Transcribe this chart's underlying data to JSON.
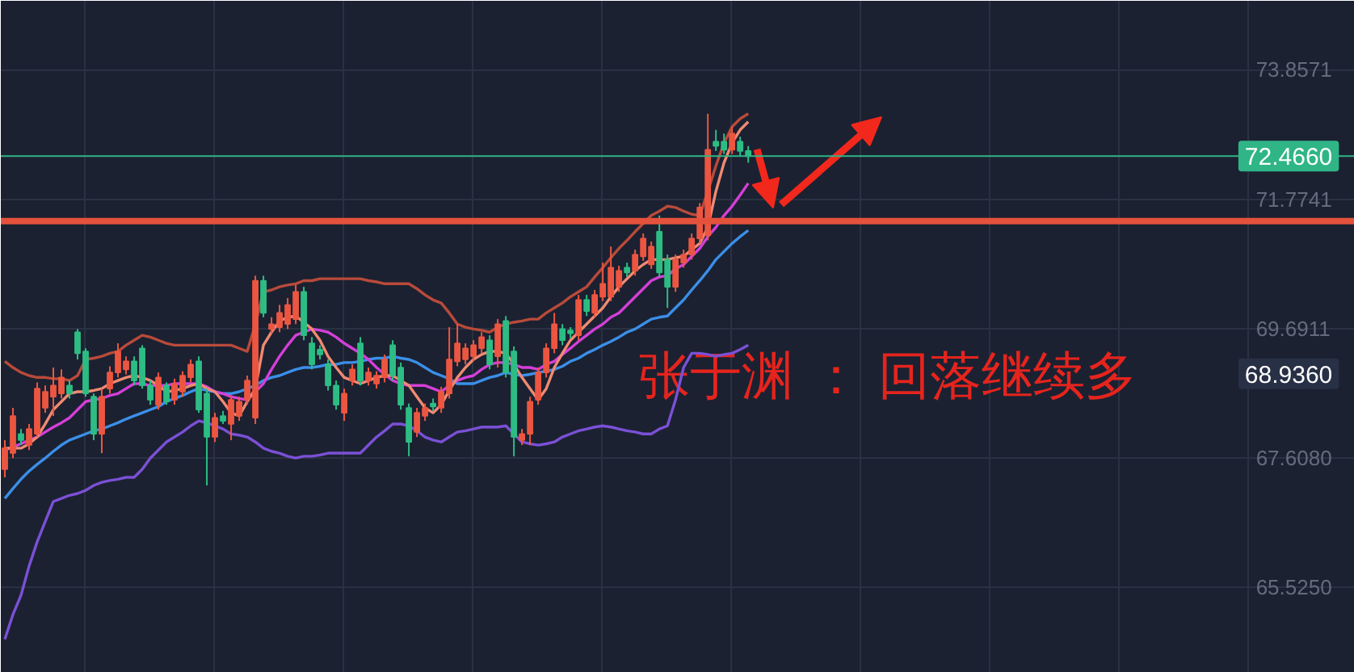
{
  "chart_data": {
    "type": "candlestick",
    "categories": [
      null,
      null,
      null,
      null,
      null,
      null,
      null,
      null,
      null,
      null,
      null,
      null,
      null,
      null,
      null,
      null,
      null,
      null,
      null,
      null,
      null,
      null,
      null,
      null,
      null,
      null,
      null,
      null,
      null,
      null,
      null,
      null,
      null,
      null,
      null,
      null,
      null,
      null,
      null,
      null,
      null,
      null,
      null,
      null,
      null,
      null,
      null,
      null,
      null,
      null,
      null,
      null,
      null,
      null,
      null,
      null,
      null,
      null,
      null,
      null,
      null,
      null,
      null,
      null,
      null,
      null,
      null,
      null,
      null,
      null,
      null,
      null,
      null,
      null,
      null,
      null,
      null,
      null,
      null,
      null,
      null,
      null,
      null,
      null,
      null,
      null,
      null,
      null,
      null,
      null,
      null,
      null,
      null
    ],
    "ohlc": [
      [
        67.42,
        67.89,
        67.29,
        67.76
      ],
      [
        67.68,
        68.41,
        67.6,
        68.28
      ],
      [
        67.99,
        68.07,
        67.81,
        67.89
      ],
      [
        67.81,
        68.15,
        67.73,
        68.07
      ],
      [
        67.99,
        68.82,
        67.94,
        68.72
      ],
      [
        68.41,
        68.77,
        68.33,
        68.67
      ],
      [
        68.59,
        69.06,
        68.28,
        68.77
      ],
      [
        68.64,
        69.03,
        68.56,
        68.9
      ],
      [
        68.77,
        68.85,
        68.56,
        68.64
      ],
      [
        69.63,
        69.68,
        69.19,
        69.29
      ],
      [
        69.32,
        69.37,
        68.59,
        68.64
      ],
      [
        68.59,
        68.64,
        67.89,
        67.99
      ],
      [
        67.99,
        68.72,
        67.68,
        68.59
      ],
      [
        68.72,
        69.08,
        68.64,
        68.98
      ],
      [
        68.98,
        69.45,
        68.9,
        69.32
      ],
      [
        69.03,
        69.24,
        68.95,
        69.16
      ],
      [
        69.16,
        69.24,
        68.77,
        68.85
      ],
      [
        69.37,
        69.42,
        68.72,
        68.77
      ],
      [
        68.77,
        68.85,
        68.46,
        68.54
      ],
      [
        68.46,
        68.98,
        68.38,
        68.9
      ],
      [
        68.77,
        68.82,
        68.46,
        68.51
      ],
      [
        68.54,
        68.88,
        68.46,
        68.8
      ],
      [
        68.67,
        69.0,
        68.59,
        68.93
      ],
      [
        68.9,
        69.19,
        68.82,
        69.11
      ],
      [
        69.16,
        69.24,
        68.33,
        68.38
      ],
      [
        68.64,
        68.72,
        67.16,
        67.94
      ],
      [
        67.94,
        68.33,
        67.86,
        68.25
      ],
      [
        68.28,
        68.36,
        68.15,
        68.2
      ],
      [
        68.15,
        68.61,
        67.89,
        68.54
      ],
      [
        68.28,
        68.59,
        68.2,
        68.51
      ],
      [
        68.54,
        68.93,
        68.46,
        68.85
      ],
      [
        68.25,
        70.54,
        68.15,
        70.46
      ],
      [
        70.46,
        70.54,
        69.87,
        69.94
      ],
      [
        69.68,
        69.87,
        69.61,
        69.76
      ],
      [
        69.71,
        70.07,
        69.63,
        69.94
      ],
      [
        69.76,
        70.18,
        69.68,
        70.07
      ],
      [
        69.84,
        70.39,
        69.76,
        70.28
      ],
      [
        70.28,
        70.36,
        69.5,
        69.58
      ],
      [
        69.45,
        69.55,
        69.03,
        69.11
      ],
      [
        69.35,
        69.42,
        69.19,
        69.27
      ],
      [
        69.11,
        69.19,
        68.69,
        68.77
      ],
      [
        68.77,
        68.85,
        68.38,
        68.46
      ],
      [
        68.33,
        68.72,
        68.2,
        68.64
      ],
      [
        68.85,
        69.11,
        68.77,
        69.03
      ],
      [
        69.45,
        69.55,
        68.77,
        68.85
      ],
      [
        68.85,
        69.06,
        68.77,
        68.98
      ],
      [
        68.8,
        69.0,
        68.72,
        68.93
      ],
      [
        68.9,
        69.27,
        68.82,
        69.19
      ],
      [
        69.42,
        69.5,
        68.85,
        68.93
      ],
      [
        69.06,
        69.14,
        68.38,
        68.46
      ],
      [
        68.41,
        68.48,
        67.63,
        67.86
      ],
      [
        68.02,
        68.41,
        67.94,
        68.33
      ],
      [
        68.28,
        68.48,
        68.2,
        68.41
      ],
      [
        68.48,
        68.56,
        68.36,
        68.43
      ],
      [
        68.41,
        68.75,
        68.33,
        68.67
      ],
      [
        68.64,
        69.71,
        68.56,
        69.19
      ],
      [
        69.16,
        69.76,
        69.08,
        69.45
      ],
      [
        69.19,
        69.45,
        69.11,
        69.37
      ],
      [
        69.24,
        69.5,
        69.16,
        69.42
      ],
      [
        69.37,
        69.63,
        69.29,
        69.55
      ],
      [
        69.5,
        69.58,
        69.03,
        69.11
      ],
      [
        69.24,
        69.84,
        69.06,
        69.76
      ],
      [
        69.81,
        69.89,
        68.9,
        68.98
      ],
      [
        69.32,
        69.4,
        67.63,
        67.94
      ],
      [
        67.89,
        68.07,
        67.81,
        67.99
      ],
      [
        67.99,
        68.59,
        67.81,
        68.51
      ],
      [
        68.54,
        69.06,
        68.46,
        68.98
      ],
      [
        68.98,
        69.45,
        68.9,
        69.37
      ],
      [
        69.37,
        69.94,
        69.29,
        69.76
      ],
      [
        69.68,
        69.76,
        69.42,
        69.5
      ],
      [
        69.66,
        69.71,
        69.53,
        69.61
      ],
      [
        69.58,
        70.23,
        69.5,
        70.15
      ],
      [
        70.15,
        70.23,
        69.89,
        69.97
      ],
      [
        69.94,
        70.31,
        69.87,
        70.23
      ],
      [
        70.2,
        70.75,
        70.13,
        70.41
      ],
      [
        70.2,
        71.01,
        70.13,
        70.67
      ],
      [
        70.36,
        70.7,
        70.28,
        70.62
      ],
      [
        70.67,
        70.75,
        70.52,
        70.59
      ],
      [
        70.62,
        70.96,
        70.54,
        70.88
      ],
      [
        70.85,
        71.22,
        70.78,
        71.14
      ],
      [
        70.72,
        71.09,
        70.65,
        71.01
      ],
      [
        71.25,
        71.51,
        70.52,
        70.59
      ],
      [
        70.8,
        70.88,
        70.02,
        70.36
      ],
      [
        70.36,
        70.88,
        70.28,
        70.8
      ],
      [
        70.75,
        70.96,
        70.67,
        70.88
      ],
      [
        70.88,
        71.22,
        70.8,
        71.14
      ],
      [
        71.14,
        71.71,
        71.06,
        71.64
      ],
      [
        71.19,
        73.15,
        71.11,
        72.57
      ],
      [
        72.7,
        72.89,
        72.55,
        72.63
      ],
      [
        72.7,
        72.83,
        72.5,
        72.57
      ],
      [
        72.57,
        72.94,
        72.5,
        72.83
      ],
      [
        72.7,
        72.78,
        72.47,
        72.55
      ],
      [
        72.55,
        72.63,
        72.36,
        72.466
      ]
    ],
    "colors": [
      "#ec5641",
      "#ec5641",
      "#2dbd84",
      "#ec5641",
      "#ec5641",
      "#ec5641",
      "#ec5641",
      "#ec5641",
      "#2dbd84",
      "#2dbd84",
      "#2dbd84",
      "#2dbd84",
      "#ec5641",
      "#ec5641",
      "#ec5641",
      "#ec5641",
      "#2dbd84",
      "#2dbd84",
      "#2dbd84",
      "#ec5641",
      "#2dbd84",
      "#ec5641",
      "#ec5641",
      "#ec5641",
      "#2dbd84",
      "#2dbd84",
      "#ec5641",
      "#2dbd84",
      "#ec5641",
      "#ec5641",
      "#ec5641",
      "#ec5641",
      "#2dbd84",
      "#ec5641",
      "#ec5641",
      "#ec5641",
      "#ec5641",
      "#2dbd84",
      "#2dbd84",
      "#2dbd84",
      "#2dbd84",
      "#2dbd84",
      "#ec5641",
      "#ec5641",
      "#2dbd84",
      "#ec5641",
      "#ec5641",
      "#ec5641",
      "#2dbd84",
      "#2dbd84",
      "#2dbd84",
      "#ec5641",
      "#ec5641",
      "#2dbd84",
      "#ec5641",
      "#ec5641",
      "#ec5641",
      "#ec5641",
      "#ec5641",
      "#ec5641",
      "#2dbd84",
      "#ec5641",
      "#2dbd84",
      "#2dbd84",
      "#ec5641",
      "#ec5641",
      "#ec5641",
      "#ec5641",
      "#ec5641",
      "#2dbd84",
      "#2dbd84",
      "#ec5641",
      "#2dbd84",
      "#ec5641",
      "#ec5641",
      "#ec5641",
      "#ec5641",
      "#2dbd84",
      "#ec5641",
      "#ec5641",
      "#ec5641",
      "#2dbd84",
      "#2dbd84",
      "#ec5641",
      "#ec5641",
      "#ec5641",
      "#ec5641",
      "#ec5641",
      "#2dbd84",
      "#2dbd84",
      "#ec5641",
      "#2dbd84",
      "#2dbd84"
    ],
    "series": [
      {
        "type": "line",
        "color": "#b94a3a",
        "values": [
          69.16,
          69.06,
          68.98,
          68.93,
          68.9,
          68.9,
          68.88,
          68.88,
          68.85,
          68.93,
          69.19,
          69.21,
          69.24,
          69.29,
          69.32,
          69.42,
          69.5,
          69.58,
          69.55,
          69.5,
          69.45,
          69.42,
          69.42,
          69.42,
          69.42,
          69.42,
          69.42,
          69.42,
          69.42,
          69.37,
          69.32,
          69.76,
          70.28,
          70.31,
          70.36,
          70.39,
          70.41,
          70.46,
          70.46,
          70.49,
          70.49,
          70.49,
          70.49,
          70.49,
          70.49,
          70.46,
          70.44,
          70.41,
          70.41,
          70.41,
          70.41,
          70.33,
          70.23,
          70.15,
          70.1,
          69.94,
          69.76,
          69.71,
          69.68,
          69.66,
          69.63,
          69.71,
          69.76,
          69.79,
          69.81,
          69.84,
          69.84,
          69.94,
          70.02,
          70.1,
          70.2,
          70.28,
          70.36,
          70.52,
          70.67,
          70.83,
          70.98,
          71.11,
          71.25,
          71.38,
          71.51,
          71.58,
          71.66,
          71.64,
          71.58,
          71.53,
          71.51,
          71.9,
          72.31,
          72.68,
          72.94,
          73.07,
          73.15
        ]
      },
      {
        "type": "line",
        "color": "#7b50d6",
        "values": [
          64.68,
          65.08,
          65.39,
          65.86,
          66.25,
          66.58,
          66.9,
          66.95,
          67.0,
          67.03,
          67.08,
          67.16,
          67.21,
          67.24,
          67.26,
          67.29,
          67.29,
          67.42,
          67.6,
          67.73,
          67.86,
          67.94,
          68.02,
          68.12,
          68.2,
          68.17,
          68.12,
          68.07,
          67.99,
          67.97,
          67.94,
          67.86,
          67.76,
          67.71,
          67.68,
          67.63,
          67.6,
          67.63,
          67.63,
          67.65,
          67.68,
          67.68,
          67.68,
          67.68,
          67.68,
          67.81,
          67.94,
          68.04,
          68.15,
          68.15,
          68.12,
          68.04,
          67.94,
          67.89,
          67.86,
          67.94,
          68.02,
          68.04,
          68.07,
          68.1,
          68.1,
          68.1,
          68.12,
          67.99,
          67.86,
          67.83,
          67.81,
          67.83,
          67.86,
          67.94,
          67.99,
          68.04,
          68.07,
          68.1,
          68.12,
          68.1,
          68.07,
          68.04,
          68.02,
          67.99,
          67.99,
          68.07,
          68.12,
          68.54,
          69.06,
          69.29,
          69.29,
          69.27,
          69.24,
          69.27,
          69.29,
          69.35,
          69.42
        ]
      },
      {
        "type": "line",
        "color": "#3b8fe8",
        "values": [
          66.95,
          67.11,
          67.26,
          67.39,
          67.5,
          67.6,
          67.71,
          67.81,
          67.89,
          67.94,
          67.99,
          68.04,
          68.07,
          68.12,
          68.17,
          68.23,
          68.28,
          68.33,
          68.38,
          68.43,
          68.51,
          68.56,
          68.61,
          68.67,
          68.72,
          68.69,
          68.67,
          68.64,
          68.64,
          68.67,
          68.72,
          68.77,
          68.85,
          68.9,
          68.93,
          68.98,
          69.03,
          69.06,
          69.06,
          69.08,
          69.11,
          69.11,
          69.14,
          69.14,
          69.16,
          69.19,
          69.21,
          69.21,
          69.24,
          69.21,
          69.19,
          69.14,
          69.06,
          68.98,
          68.93,
          68.88,
          68.8,
          68.8,
          68.8,
          68.85,
          68.9,
          68.93,
          68.98,
          68.95,
          68.93,
          68.95,
          68.98,
          69.0,
          69.03,
          69.08,
          69.16,
          69.21,
          69.29,
          69.35,
          69.42,
          69.48,
          69.55,
          69.63,
          69.68,
          69.76,
          69.84,
          69.87,
          69.89,
          70.02,
          70.15,
          70.31,
          70.46,
          70.62,
          70.8,
          70.93,
          71.06,
          71.17,
          71.27
        ]
      },
      {
        "type": "line",
        "color": "#d43fd8",
        "values": [
          67.73,
          67.78,
          67.83,
          67.89,
          67.94,
          68.02,
          68.1,
          68.17,
          68.25,
          68.38,
          68.51,
          68.54,
          68.56,
          68.61,
          68.64,
          68.72,
          68.8,
          68.8,
          68.77,
          68.77,
          68.77,
          68.8,
          68.8,
          68.8,
          68.8,
          68.75,
          68.67,
          68.64,
          68.59,
          68.56,
          68.54,
          68.67,
          68.8,
          69.03,
          69.24,
          69.42,
          69.58,
          69.63,
          69.68,
          69.66,
          69.63,
          69.55,
          69.45,
          69.37,
          69.29,
          69.19,
          69.06,
          68.95,
          68.85,
          68.8,
          68.77,
          68.77,
          68.77,
          68.72,
          68.67,
          68.77,
          68.85,
          68.9,
          68.93,
          69.03,
          69.11,
          69.14,
          69.14,
          69.11,
          69.06,
          69.06,
          69.03,
          69.11,
          69.16,
          69.27,
          69.37,
          69.48,
          69.58,
          69.68,
          69.76,
          69.87,
          69.94,
          70.07,
          70.2,
          70.33,
          70.46,
          70.52,
          70.54,
          70.65,
          70.72,
          70.85,
          70.98,
          71.17,
          71.32,
          71.51,
          71.66,
          71.84,
          72.03
        ]
      },
      {
        "type": "line",
        "color": "#f08a72",
        "values": [
          67.76,
          67.76,
          67.76,
          67.83,
          67.94,
          68.15,
          68.38,
          68.51,
          68.64,
          68.67,
          68.67,
          68.69,
          68.72,
          68.8,
          68.85,
          68.9,
          68.93,
          68.9,
          68.85,
          68.77,
          68.67,
          68.69,
          68.72,
          68.77,
          68.8,
          68.72,
          68.67,
          68.51,
          68.33,
          68.28,
          68.51,
          68.72,
          69.42,
          69.63,
          69.81,
          69.87,
          69.89,
          69.79,
          69.68,
          69.5,
          69.24,
          69.06,
          68.9,
          68.85,
          68.8,
          68.85,
          68.9,
          68.93,
          68.93,
          68.85,
          68.77,
          68.59,
          68.41,
          68.33,
          68.46,
          68.69,
          68.9,
          69.06,
          69.19,
          69.27,
          69.32,
          69.32,
          69.29,
          69.11,
          68.9,
          68.72,
          68.54,
          68.72,
          69.06,
          69.29,
          69.5,
          69.63,
          69.76,
          69.89,
          70.02,
          70.2,
          70.36,
          70.49,
          70.62,
          70.72,
          70.8,
          70.8,
          70.8,
          70.83,
          70.85,
          70.96,
          71.06,
          71.32,
          71.9,
          72.36,
          72.68,
          72.89,
          73.02
        ]
      }
    ],
    "ylim": [
      64.14,
      74.97
    ],
    "yticks": [
      {
        "value": 65.525,
        "label": "65.5250"
      },
      {
        "value": 67.608,
        "label": "67.6080"
      },
      69.6911,
      71.7741,
      73.8571
    ],
    "ref_lines": [
      {
        "axis": "y",
        "value": 71.42,
        "color": "#e4523b"
      },
      {
        "axis": "y",
        "value": 72.466,
        "label": "72.4660",
        "color": "#2fb586"
      }
    ],
    "annotations": [
      "张于渊 ： 回落继续多",
      "68.9360"
    ],
    "grid": true,
    "tick_labels": "y"
  }
}
